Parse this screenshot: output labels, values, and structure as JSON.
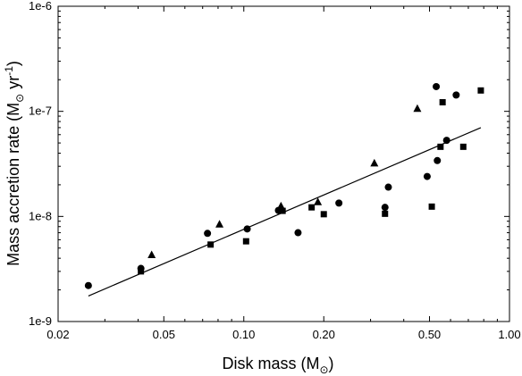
{
  "chart_data": {
    "type": "scatter",
    "xscale": "log",
    "yscale": "log",
    "xlim": [
      0.02,
      1.0
    ],
    "ylim": [
      1e-09,
      1e-06
    ],
    "grid": false,
    "legend": "none",
    "x_ticks": [
      {
        "value": 0.02,
        "label": "0.02"
      },
      {
        "value": 0.05,
        "label": "0.05"
      },
      {
        "value": 0.1,
        "label": "0.10"
      },
      {
        "value": 0.2,
        "label": "0.20"
      },
      {
        "value": 0.5,
        "label": "0.50"
      },
      {
        "value": 1.0,
        "label": "1.00"
      }
    ],
    "y_ticks": [
      {
        "value": 1e-09,
        "label": "1e-9"
      },
      {
        "value": 1e-08,
        "label": "1e-8"
      },
      {
        "value": 1e-07,
        "label": "1e-7"
      },
      {
        "value": 1e-06,
        "label": "1e-6"
      }
    ],
    "xlabel": {
      "text": "Disk mass (M",
      "sub": "⊙",
      "close": ")"
    },
    "ylabel": {
      "text": "Mass accretion rate (M",
      "sub": "⊙",
      "mid": " yr",
      "sup": "-1",
      "close": ")"
    },
    "series": [
      {
        "marker": "circle",
        "points": [
          [
            0.026,
            2.2e-09
          ],
          [
            0.041,
            3.2e-09
          ],
          [
            0.073,
            6.9e-09
          ],
          [
            0.103,
            7.6e-09
          ],
          [
            0.135,
            1.14e-08
          ],
          [
            0.16,
            7e-09
          ],
          [
            0.228,
            1.34e-08
          ],
          [
            0.34,
            1.22e-08
          ],
          [
            0.35,
            1.9e-08
          ],
          [
            0.49,
            2.4e-08
          ],
          [
            0.53,
            1.72e-07
          ],
          [
            0.535,
            3.4e-08
          ],
          [
            0.58,
            5.3e-08
          ],
          [
            0.63,
            1.43e-07
          ]
        ]
      },
      {
        "marker": "square",
        "points": [
          [
            0.041,
            3e-09
          ],
          [
            0.075,
            5.4e-09
          ],
          [
            0.102,
            5.8e-09
          ],
          [
            0.14,
            1.13e-08
          ],
          [
            0.18,
            1.22e-08
          ],
          [
            0.2,
            1.05e-08
          ],
          [
            0.34,
            1.06e-08
          ],
          [
            0.51,
            1.24e-08
          ],
          [
            0.55,
            4.6e-08
          ],
          [
            0.56,
            1.22e-07
          ],
          [
            0.67,
            4.6e-08
          ],
          [
            0.78,
            1.58e-07
          ]
        ]
      },
      {
        "marker": "triangle",
        "points": [
          [
            0.045,
            4.3e-09
          ],
          [
            0.081,
            8.4e-09
          ],
          [
            0.138,
            1.25e-08
          ],
          [
            0.19,
            1.37e-08
          ],
          [
            0.31,
            3.2e-08
          ],
          [
            0.45,
            1.06e-07
          ]
        ]
      }
    ],
    "fit_line": [
      [
        0.026,
        1.75e-09
      ],
      [
        0.78,
        7e-08
      ]
    ]
  }
}
